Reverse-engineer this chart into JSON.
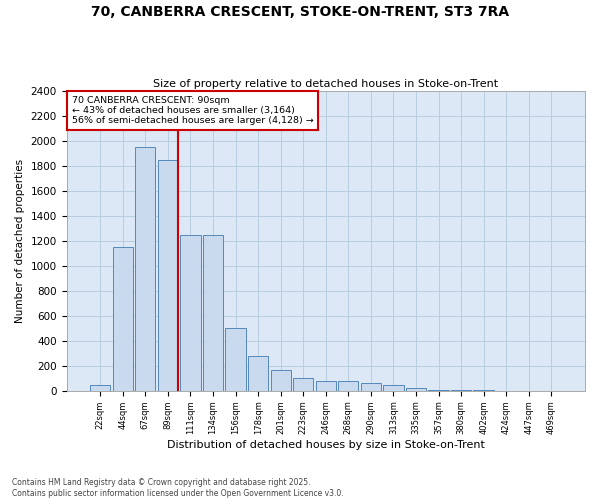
{
  "title1": "70, CANBERRA CRESCENT, STOKE-ON-TRENT, ST3 7RA",
  "title2": "Size of property relative to detached houses in Stoke-on-Trent",
  "xlabel": "Distribution of detached houses by size in Stoke-on-Trent",
  "ylabel": "Number of detached properties",
  "categories": [
    "22sqm",
    "44sqm",
    "67sqm",
    "89sqm",
    "111sqm",
    "134sqm",
    "156sqm",
    "178sqm",
    "201sqm",
    "223sqm",
    "246sqm",
    "268sqm",
    "290sqm",
    "313sqm",
    "335sqm",
    "357sqm",
    "380sqm",
    "402sqm",
    "424sqm",
    "447sqm",
    "469sqm"
  ],
  "values": [
    50,
    1150,
    1950,
    1850,
    1250,
    1250,
    500,
    280,
    170,
    100,
    80,
    80,
    60,
    50,
    20,
    10,
    5,
    3,
    2,
    1,
    0
  ],
  "bar_color": "#c9d9ee",
  "bar_edge_color": "#5588bb",
  "red_line_x": 3.45,
  "annotation_line1": "70 CANBERRA CRESCENT: 90sqm",
  "annotation_line2": "← 43% of detached houses are smaller (3,164)",
  "annotation_line3": "56% of semi-detached houses are larger (4,128) →",
  "annotation_box_color": "#ffffff",
  "annotation_box_edgecolor": "#cc0000",
  "ylim": [
    0,
    2400
  ],
  "yticks": [
    0,
    200,
    400,
    600,
    800,
    1000,
    1200,
    1400,
    1600,
    1800,
    2000,
    2200,
    2400
  ],
  "grid_color": "#b8cde0",
  "plot_bg_color": "#dce8f5",
  "fig_bg_color": "#ffffff",
  "footnote1": "Contains HM Land Registry data © Crown copyright and database right 2025.",
  "footnote2": "Contains public sector information licensed under the Open Government Licence v3.0."
}
